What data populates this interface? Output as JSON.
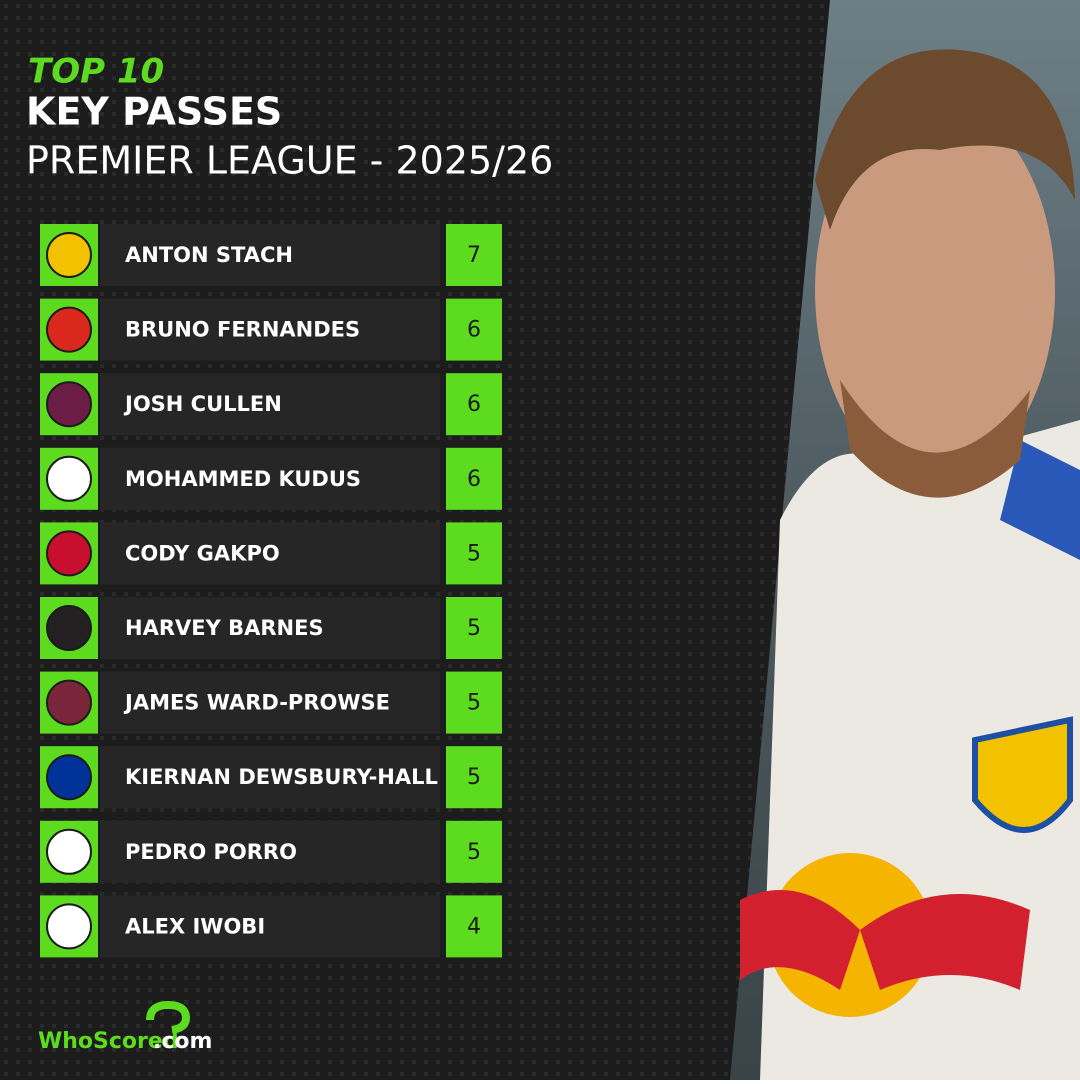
{
  "header": {
    "kicker": "TOP 10",
    "title": "KEY PASSES",
    "subtitle": "PREMIER LEAGUE - 2025/26"
  },
  "table": {
    "rows": [
      {
        "player": "ANTON STACH",
        "value": 7
      },
      {
        "player": "BRUNO FERNANDES",
        "value": 6
      },
      {
        "player": "JOSH CULLEN",
        "value": 6
      },
      {
        "player": "MOHAMMED KUDUS",
        "value": 6
      },
      {
        "player": "CODY GAKPO",
        "value": 5
      },
      {
        "player": "HARVEY BARNES",
        "value": 5
      },
      {
        "player": "JAMES WARD-PROWSE",
        "value": 5
      },
      {
        "player": "KIERNAN DEWSBURY-HALL",
        "value": 5
      },
      {
        "player": "PEDRO PORRO",
        "value": 5
      },
      {
        "player": "ALEX IWOBI",
        "value": 4
      }
    ]
  },
  "logo": {
    "brand": "WhoScored",
    "suffix": ".com"
  }
}
